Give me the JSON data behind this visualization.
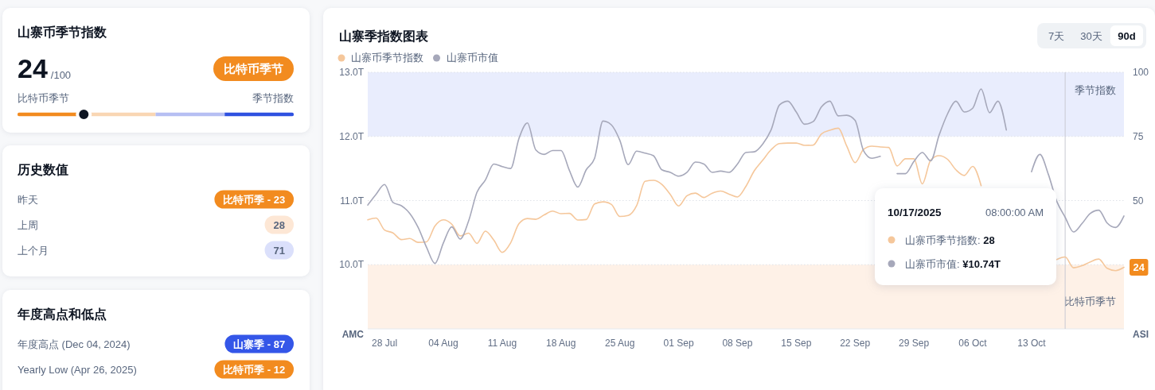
{
  "chart_data": [
    {
      "type": "other",
      "title": "山寨币季节指数",
      "values": [
        24,
        100
      ],
      "value_labels": [
        "24",
        "/100"
      ],
      "annotations": [
        "比特币季节",
        "比特币季节",
        "季节指数"
      ]
    },
    {
      "type": "other",
      "title": "历史数值",
      "categories": [
        "昨天",
        "上周",
        "上个月"
      ],
      "value_labels": [
        "比特币季 - 23",
        "28",
        "71"
      ],
      "colors": [
        "#f28b1f",
        "#fde7d5",
        "#dbe0fb"
      ]
    },
    {
      "type": "other",
      "title": "年度高点和低点",
      "categories": [
        "年度高点 (Dec 04, 2024)",
        "Yearly Low (Apr 26, 2025)"
      ],
      "value_labels": [
        "山寨季 - 87",
        "比特币季 - 12"
      ],
      "colors": [
        "#3456e8",
        "#f28b1f"
      ]
    },
    {
      "type": "line",
      "title": "山寨季指数图表",
      "x": [
        "2025-07-26",
        "2025-07-27",
        "2025-07-28",
        "2025-07-29",
        "2025-07-30",
        "2025-07-31",
        "2025-08-01",
        "2025-08-02",
        "2025-08-03",
        "2025-08-04",
        "2025-08-05",
        "2025-08-06",
        "2025-08-07",
        "2025-08-08",
        "2025-08-09",
        "2025-08-10",
        "2025-08-11",
        "2025-08-12",
        "2025-08-13",
        "2025-08-14",
        "2025-08-15",
        "2025-08-16",
        "2025-08-17",
        "2025-08-18",
        "2025-08-19",
        "2025-08-20",
        "2025-08-21",
        "2025-08-22",
        "2025-08-23",
        "2025-08-24",
        "2025-08-25",
        "2025-08-26",
        "2025-08-27",
        "2025-08-28",
        "2025-08-29",
        "2025-08-30",
        "2025-08-31",
        "2025-09-01",
        "2025-09-02",
        "2025-09-03",
        "2025-09-04",
        "2025-09-05",
        "2025-09-06",
        "2025-09-07",
        "2025-09-08",
        "2025-09-09",
        "2025-09-10",
        "2025-09-11",
        "2025-09-12",
        "2025-09-13",
        "2025-09-14",
        "2025-09-15",
        "2025-09-16",
        "2025-09-17",
        "2025-09-18",
        "2025-09-19",
        "2025-09-20",
        "2025-09-21",
        "2025-09-22",
        "2025-09-23",
        "2025-09-24",
        "2025-09-25",
        "2025-09-26",
        "2025-09-27",
        "2025-09-28",
        "2025-09-29",
        "2025-09-30",
        "2025-10-01",
        "2025-10-02",
        "2025-10-03",
        "2025-10-04",
        "2025-10-05",
        "2025-10-06",
        "2025-10-07",
        "2025-10-08",
        "2025-10-09",
        "2025-10-10",
        "2025-10-11",
        "2025-10-12",
        "2025-10-13",
        "2025-10-14",
        "2025-10-15",
        "2025-10-16",
        "2025-10-17",
        "2025-10-18",
        "2025-10-19",
        "2025-10-20",
        "2025-10-21",
        "2025-10-22",
        "2025-10-23",
        "2025-10-24"
      ],
      "xlim": [
        "2025-07-26",
        "2025-10-24"
      ],
      "xticks": [
        {
          "value": "2025-07-28",
          "label": "28 Jul"
        },
        {
          "value": "2025-08-04",
          "label": "04 Aug"
        },
        {
          "value": "2025-08-11",
          "label": "11 Aug"
        },
        {
          "value": "2025-08-18",
          "label": "18 Aug"
        },
        {
          "value": "2025-08-25",
          "label": "25 Aug"
        },
        {
          "value": "2025-09-01",
          "label": "01 Sep"
        },
        {
          "value": "2025-09-08",
          "label": "08 Sep"
        },
        {
          "value": "2025-09-15",
          "label": "15 Sep"
        },
        {
          "value": "2025-09-22",
          "label": "22 Sep"
        },
        {
          "value": "2025-09-29",
          "label": "29 Sep"
        },
        {
          "value": "2025-10-06",
          "label": "06 Oct"
        },
        {
          "value": "2025-10-13",
          "label": "13 Oct"
        }
      ],
      "ylim": [
        9,
        13
      ],
      "yticks": [
        {
          "value": 10,
          "label": "10.0T"
        },
        {
          "value": 11,
          "label": "11.0T"
        },
        {
          "value": 12,
          "label": "12.0T"
        },
        {
          "value": 13,
          "label": "13.0T"
        }
      ],
      "ylabel": "AMC",
      "y2lim": [
        0,
        100
      ],
      "y2ticks": [
        50,
        75,
        100
      ],
      "y2label": "ASI",
      "series": [
        {
          "name": "山寨币季节指数",
          "color": "#f5c79b",
          "axis": "y2",
          "values": [
            42.5,
            43.2,
            38.5,
            37.4,
            34.8,
            35.2,
            33.7,
            33.9,
            40.1,
            42.5,
            40.8,
            36.2,
            37.3,
            33.3,
            38.1,
            34.6,
            29.8,
            33.5,
            41.0,
            43.0,
            42.7,
            44.4,
            45.9,
            44.9,
            45.0,
            42.4,
            42.6,
            48.7,
            49.5,
            48.5,
            43.8,
            44.2,
            48.0,
            57.5,
            57.9,
            56.3,
            52.4,
            47.9,
            51.9,
            52.9,
            51.2,
            52.9,
            53.7,
            52.5,
            51.4,
            55.5,
            61.6,
            65.7,
            69.8,
            72.2,
            72.4,
            72.4,
            71.5,
            71.6,
            76.0,
            77.4,
            78.2,
            71.3,
            64.8,
            69.9,
            71.2,
            70.9,
            70.7,
            63.5,
            66.3,
            66.3,
            56.5,
            65.8,
            67.5,
            66.1,
            62.0,
            59.8,
            63.3,
            55.8,
            null,
            null,
            null,
            null,
            null,
            null,
            null,
            null,
            27.0,
            28,
            23.8,
            24.6,
            26.1,
            27.2,
            23.6,
            22.7,
            24
          ],
          "value_labels": [
            null,
            null,
            null,
            null,
            null,
            null,
            null,
            null,
            null,
            null,
            null,
            null,
            null,
            null,
            null,
            null,
            null,
            null,
            null,
            null,
            null,
            null,
            null,
            null,
            null,
            null,
            null,
            null,
            null,
            null,
            null,
            null,
            null,
            null,
            null,
            null,
            null,
            null,
            null,
            null,
            null,
            null,
            null,
            null,
            null,
            null,
            null,
            null,
            null,
            null,
            null,
            null,
            null,
            null,
            null,
            null,
            null,
            null,
            null,
            null,
            null,
            null,
            null,
            null,
            null,
            null,
            null,
            null,
            null,
            null,
            null,
            null,
            null,
            null,
            null,
            null,
            null,
            null,
            null,
            null,
            null,
            null,
            null,
            null,
            null,
            null,
            null,
            null,
            null,
            null,
            "24"
          ]
        },
        {
          "name": "山寨币市值",
          "color": "#a6a8ba",
          "values": [
            10.93,
            11.1,
            11.25,
            10.97,
            10.92,
            10.8,
            10.58,
            10.27,
            10.02,
            10.34,
            10.59,
            10.4,
            10.68,
            11.13,
            11.32,
            11.57,
            11.53,
            11.5,
            11.97,
            12.21,
            11.79,
            11.72,
            11.78,
            11.78,
            11.47,
            11.21,
            11.48,
            11.66,
            12.24,
            12.18,
            11.94,
            11.56,
            11.77,
            11.74,
            11.7,
            11.48,
            11.44,
            11.38,
            11.44,
            11.6,
            11.57,
            11.44,
            11.46,
            11.44,
            11.57,
            11.75,
            11.76,
            11.88,
            12.1,
            12.49,
            12.55,
            12.38,
            12.19,
            12.23,
            12.46,
            12.55,
            12.32,
            12.33,
            12.25,
            11.78,
            11.66,
            11.69,
            null,
            11.42,
            11.42,
            11.61,
            11.75,
            11.62,
            12.02,
            12.35,
            12.55,
            12.38,
            12.44,
            12.74,
            12.37,
            12.55,
            12.1,
            null,
            null,
            11.45,
            11.72,
            11.41,
            10.99,
            10.74,
            10.51,
            10.64,
            10.8,
            10.85,
            10.65,
            10.58,
            10.76
          ]
        }
      ],
      "bands": [
        {
          "axis": "y2",
          "from": 75,
          "to": 100,
          "label": "季节指数",
          "color": "#e9edfd"
        },
        {
          "axis": "y2",
          "from": 0,
          "to": 25,
          "label": "比特币季节",
          "color": "#fef1e7"
        }
      ],
      "ref_lines": [
        {
          "axis": "x",
          "value": "2025-10-17",
          "color": "#c8cad2"
        }
      ],
      "annotations": [
        "10/17/2025",
        "08:00:00 AM",
        "山寨币季节指数: 28",
        "山寨币市值: ¥10.74T",
        "7天",
        "30天",
        "90d"
      ],
      "legend": "top left",
      "grid": "y"
    }
  ]
}
